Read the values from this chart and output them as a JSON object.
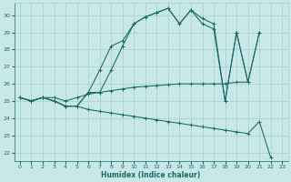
{
  "xlabel": "Humidex (Indice chaleur)",
  "bg_color": "#c8e8e8",
  "grid_color": "#a8cccc",
  "line_color": "#1a6868",
  "xlim": [
    -0.5,
    23.5
  ],
  "ylim": [
    21.5,
    30.7
  ],
  "xticks": [
    0,
    1,
    2,
    3,
    4,
    5,
    6,
    7,
    8,
    9,
    10,
    11,
    12,
    13,
    14,
    15,
    16,
    17,
    18,
    19,
    20,
    21,
    22,
    23
  ],
  "yticks": [
    22,
    23,
    24,
    25,
    26,
    27,
    28,
    29,
    30
  ],
  "series": [
    {
      "x": [
        0,
        1,
        2,
        3,
        4,
        5,
        6,
        7,
        8,
        9,
        10,
        11,
        12,
        13,
        14,
        15,
        16,
        17,
        18,
        19,
        20,
        21
      ],
      "y": [
        25.2,
        25.0,
        25.2,
        25.0,
        24.7,
        24.7,
        25.5,
        26.8,
        28.2,
        28.5,
        29.5,
        29.9,
        30.15,
        30.4,
        29.5,
        30.3,
        29.8,
        29.5,
        25.0,
        29.0,
        26.1,
        29.0
      ]
    },
    {
      "x": [
        0,
        1,
        2,
        3,
        4,
        5,
        6,
        7,
        8,
        9,
        10,
        11,
        12,
        13,
        14,
        15,
        16,
        17,
        18,
        19,
        20,
        21
      ],
      "y": [
        25.2,
        25.0,
        25.2,
        25.0,
        24.7,
        24.7,
        25.5,
        25.5,
        26.8,
        28.2,
        29.5,
        29.9,
        30.15,
        30.4,
        29.5,
        30.3,
        29.5,
        29.2,
        25.0,
        29.0,
        26.1,
        29.0
      ]
    },
    {
      "x": [
        0,
        1,
        2,
        3,
        4,
        5,
        6,
        7,
        8,
        9,
        10,
        11,
        12,
        13,
        14,
        15,
        16,
        17,
        18,
        19,
        20
      ],
      "y": [
        25.2,
        25.0,
        25.2,
        25.2,
        25.0,
        25.2,
        25.4,
        25.5,
        25.6,
        25.7,
        25.8,
        25.85,
        25.9,
        25.95,
        26.0,
        26.0,
        26.0,
        26.0,
        26.0,
        26.1,
        26.1
      ]
    },
    {
      "x": [
        0,
        1,
        2,
        3,
        4,
        5,
        6,
        7,
        8,
        9,
        10,
        11,
        12,
        13,
        14,
        15,
        16,
        17,
        18,
        19,
        20,
        21,
        22
      ],
      "y": [
        25.2,
        25.0,
        25.2,
        25.0,
        24.7,
        24.7,
        24.5,
        24.4,
        24.3,
        24.2,
        24.1,
        24.0,
        23.9,
        23.8,
        23.7,
        23.6,
        23.5,
        23.4,
        23.3,
        23.2,
        23.1,
        23.8,
        21.7
      ]
    }
  ]
}
